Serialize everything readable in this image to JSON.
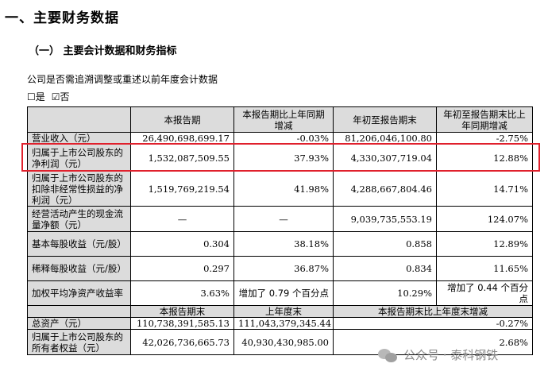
{
  "heading": "一、主要财务数据",
  "subheading": "（一）  主要会计数据和财务指标",
  "question": "公司是否需追溯调整或重述以前年度会计数据",
  "options": {
    "no_box": "☐",
    "no": "是",
    "yes_box": "☑",
    "yes": "否"
  },
  "table": {
    "head1": [
      "",
      "本报告期",
      "本报告期比上年同期增减",
      "年初至报告期末",
      "年初至报告期末比上年同期增减"
    ],
    "rows1": [
      [
        "营业收入（元）",
        "26,490,698,699.17",
        "-0.03%",
        "81,206,046,100.80",
        "-2.75%"
      ],
      [
        "归属于上市公司股东的净利润（元）",
        "1,532,087,509.55",
        "37.93%",
        "4,330,307,719.04",
        "12.88%"
      ],
      [
        "归属于上市公司股东的扣除非经常性损益的净利润（元）",
        "1,519,769,219.54",
        "41.98%",
        "4,288,667,804.46",
        "14.71%"
      ],
      [
        "经营活动产生的现金流量净额（元）",
        "—",
        "—",
        "9,039,735,553.19",
        "124.07%"
      ],
      [
        "基本每股收益（元/股）",
        "0.304",
        "38.18%",
        "0.858",
        "12.89%"
      ],
      [
        "稀释每股收益（元/股）",
        "0.297",
        "36.87%",
        "0.834",
        "11.65%"
      ],
      [
        "加权平均净资产收益率",
        "3.63%",
        "增加了 0.79 个百分点",
        "10.29%",
        "增加了 0.44 个百分点"
      ]
    ],
    "head2": [
      "",
      "本报告期末",
      "上年度末",
      "本报告期末比上年度末增减"
    ],
    "rows2": [
      [
        "总资产（元）",
        "110,738,391,585.13",
        "111,043,379,345.44",
        "-0.27%"
      ],
      [
        "归属于上市公司股东的所有者权益（元）",
        "42,026,736,665.73",
        "40,930,430,985.00",
        "2.68%"
      ]
    ]
  },
  "watermark": "公众号 · 泰科钢铁"
}
